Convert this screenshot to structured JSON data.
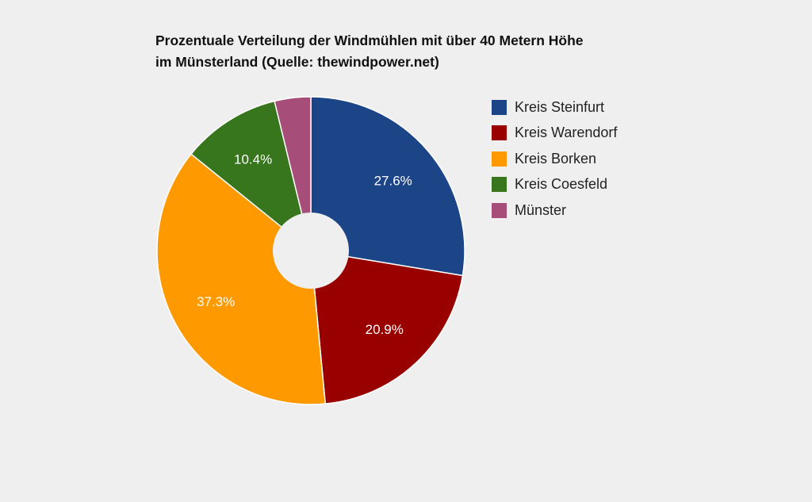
{
  "chart_data": {
    "type": "pie",
    "title_lines": [
      "Prozentuale Verteilung der Windmühlen mit über 40 Metern Höhe",
      "im Münsterland (Quelle: thewindpower.net)"
    ],
    "donut": true,
    "legend_position": "right",
    "slices": [
      {
        "name": "Kreis Steinfurt",
        "value": 27.6,
        "label": "27.6%",
        "color": "#1c4587"
      },
      {
        "name": "Kreis Warendorf",
        "value": 20.9,
        "label": "20.9%",
        "color": "#990000"
      },
      {
        "name": "Kreis Borken",
        "value": 37.3,
        "label": "37.3%",
        "color": "#ff9900"
      },
      {
        "name": "Kreis Coesfeld",
        "value": 10.4,
        "label": "10.4%",
        "color": "#38761d"
      },
      {
        "name": "Münster",
        "value": 3.8,
        "label": "",
        "color": "#a64d79"
      }
    ]
  }
}
